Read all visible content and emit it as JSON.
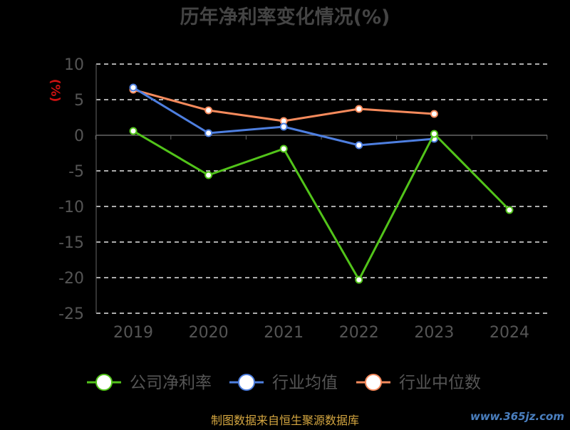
{
  "chart_data": {
    "type": "line",
    "title": "历年净利率变化情况(%)",
    "ylabel": "(%)",
    "xlabel": "",
    "categories": [
      "2019",
      "2020",
      "2021",
      "2022",
      "2023",
      "2024"
    ],
    "ylim": [
      -25,
      10
    ],
    "yticks": [
      10,
      5,
      0,
      -5,
      -10,
      -15,
      -20,
      -25
    ],
    "grid": true,
    "legend_position": "bottom",
    "series": [
      {
        "name": "公司净利率",
        "color": "#52c41a",
        "values": [
          0.6,
          -5.6,
          -1.9,
          -20.3,
          0.2,
          -10.5
        ]
      },
      {
        "name": "行业均值",
        "color": "#4e7fe0",
        "values": [
          6.7,
          0.3,
          1.2,
          -1.4,
          -0.5,
          null
        ]
      },
      {
        "name": "行业中位数",
        "color": "#f58a5c",
        "values": [
          6.4,
          3.5,
          2.0,
          3.7,
          3.0,
          null
        ]
      }
    ]
  },
  "footer": {
    "source": "制图数据来自恒生聚源数据库",
    "watermark": "www.365jz.com"
  }
}
